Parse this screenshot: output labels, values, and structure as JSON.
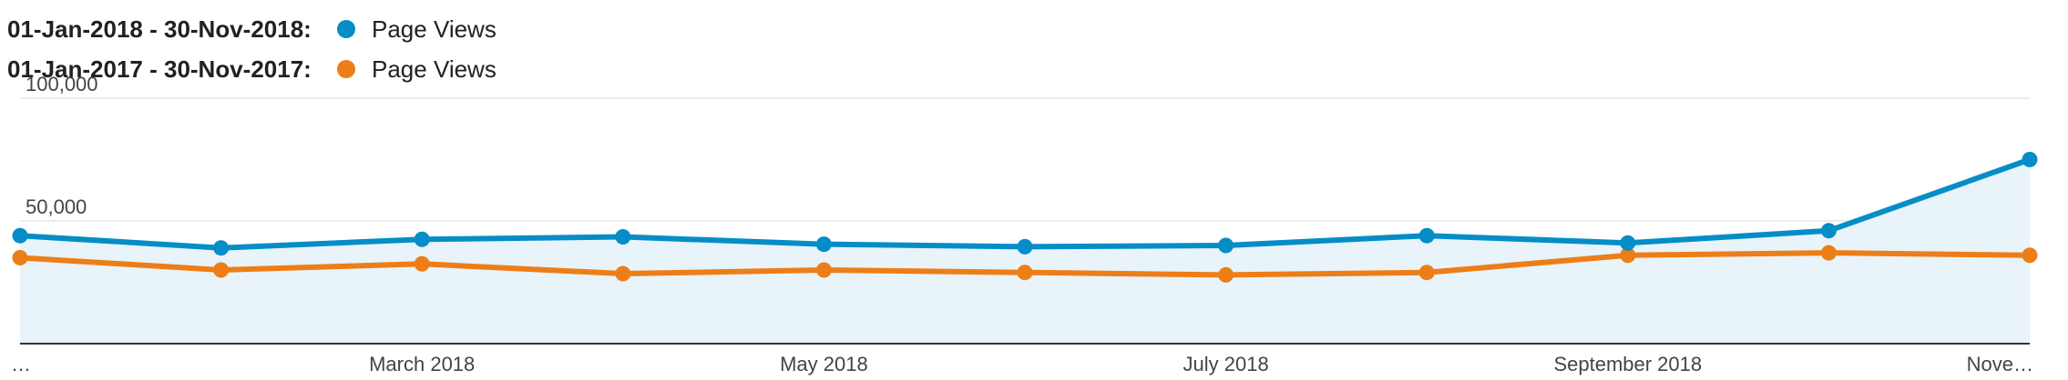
{
  "legend": [
    {
      "range": "01-Jan-2018 - 30-Nov-2018:",
      "name": "Page Views",
      "color": "#058dc7"
    },
    {
      "range": "01-Jan-2017 - 30-Nov-2017:",
      "name": "Page Views",
      "color": "#ed7e17"
    }
  ],
  "chart_data": {
    "type": "line",
    "x": [
      "…",
      "",
      "March 2018",
      "",
      "May 2018",
      "",
      "July 2018",
      "",
      "September 2018",
      "",
      "Nove…"
    ],
    "series": [
      {
        "name": "Page Views",
        "color": "#058dc7",
        "values": [
          44000,
          39000,
          42500,
          43500,
          40500,
          39500,
          40000,
          44000,
          41000,
          46000,
          75000
        ]
      },
      {
        "name": "Page Views",
        "color": "#ed7e17",
        "values": [
          35000,
          30000,
          32500,
          28500,
          30000,
          29000,
          28000,
          29000,
          36000,
          37000,
          36000
        ]
      }
    ],
    "y_ticks": [
      {
        "value": 50000,
        "label": "50,000"
      },
      {
        "value": 100000,
        "label": "100,000"
      }
    ],
    "ylim": [
      0,
      100000
    ],
    "area_fill": "#e8f3fa",
    "grid": true
  }
}
